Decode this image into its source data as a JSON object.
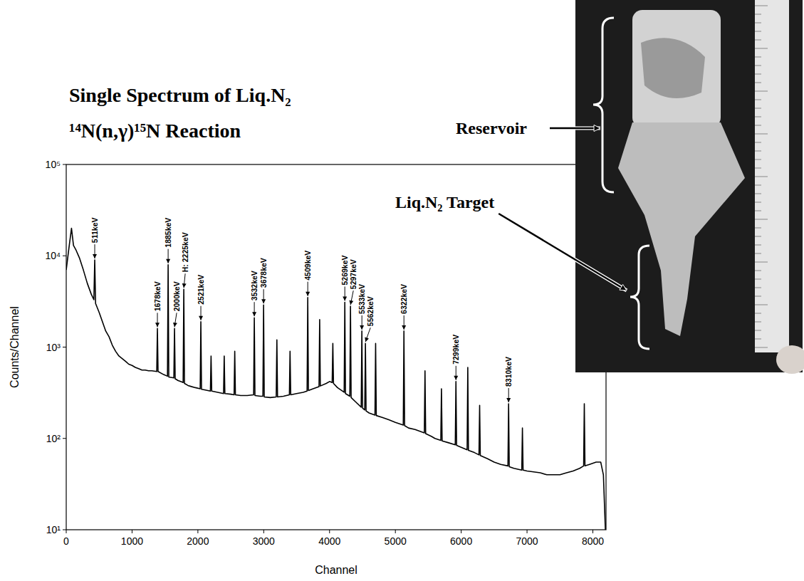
{
  "chart_data": {
    "type": "line",
    "title": "Single Spectrum of Liq.N₂",
    "subtitle": "¹⁴N(n,γ)¹⁵N Reaction",
    "x_label": "Channel",
    "y_label": "Counts/Channel",
    "color": "#000000",
    "log": "y",
    "grid": false,
    "xlim": [
      0,
      8200
    ],
    "ylim": [
      10,
      100000
    ],
    "xticks": [
      0,
      1000,
      2000,
      3000,
      4000,
      5000,
      6000,
      7000,
      8000
    ],
    "yticks": [
      {
        "value": 10,
        "label": "10¹"
      },
      {
        "value": 100,
        "label": "10²"
      },
      {
        "value": 1000,
        "label": "10³"
      },
      {
        "value": 10000,
        "label": "10⁴"
      },
      {
        "value": 100000,
        "label": "10⁵"
      }
    ],
    "x": [
      0,
      40,
      80,
      110,
      150,
      200,
      260,
      320,
      380,
      420,
      433,
      446,
      500,
      600,
      650,
      700,
      750,
      800,
      850,
      900,
      950,
      1000,
      1050,
      1100,
      1150,
      1200,
      1250,
      1300,
      1375,
      1385,
      1395,
      1480,
      1538,
      1548,
      1558,
      1635,
      1645,
      1655,
      1700,
      1776,
      1786,
      1796,
      1850,
      1900,
      1960,
      2035,
      2045,
      2055,
      2100,
      2190,
      2200,
      2210,
      2390,
      2400,
      2410,
      2500,
      2550,
      2560,
      2570,
      2650,
      2750,
      2847,
      2857,
      2867,
      2950,
      2988,
      2998,
      3008,
      3100,
      3190,
      3200,
      3210,
      3300,
      3390,
      3400,
      3410,
      3500,
      3600,
      3659,
      3669,
      3679,
      3750,
      3840,
      3850,
      3860,
      3950,
      4000,
      4040,
      4050,
      4060,
      4120,
      4222,
      4232,
      4242,
      4308,
      4318,
      4328,
      4400,
      4481,
      4491,
      4501,
      4535,
      4545,
      4555,
      4600,
      4690,
      4700,
      4710,
      4800,
      4900,
      5000,
      5120,
      5130,
      5140,
      5200,
      5300,
      5440,
      5450,
      5460,
      5550,
      5600,
      5690,
      5700,
      5710,
      5800,
      5910,
      5920,
      5930,
      6000,
      6090,
      6100,
      6110,
      6200,
      6270,
      6280,
      6290,
      6400,
      6500,
      6600,
      6710,
      6720,
      6730,
      6800,
      6920,
      6930,
      6940,
      7000,
      7100,
      7200,
      7300,
      7400,
      7500,
      7600,
      7700,
      7800,
      7860,
      7870,
      7880,
      7950,
      8050,
      8120,
      8160,
      8190
    ],
    "values": [
      7000,
      12000,
      20000,
      13000,
      11500,
      9500,
      7000,
      5000,
      3800,
      3300,
      9000,
      3000,
      2400,
      1500,
      1300,
      1050,
      900,
      800,
      750,
      700,
      650,
      630,
      600,
      580,
      560,
      560,
      550,
      550,
      540,
      1600,
      540,
      500,
      480,
      8000,
      470,
      460,
      1600,
      450,
      430,
      410,
      4300,
      400,
      380,
      370,
      360,
      350,
      1900,
      345,
      340,
      330,
      800,
      330,
      310,
      800,
      310,
      305,
      300,
      900,
      300,
      295,
      295,
      300,
      2100,
      295,
      290,
      290,
      2900,
      285,
      280,
      285,
      1200,
      285,
      290,
      300,
      900,
      300,
      310,
      320,
      330,
      3500,
      335,
      350,
      370,
      2000,
      375,
      400,
      420,
      410,
      1100,
      400,
      360,
      320,
      3100,
      310,
      290,
      2800,
      280,
      250,
      220,
      1500,
      215,
      205,
      1100,
      200,
      190,
      180,
      1100,
      178,
      170,
      160,
      150,
      140,
      1500,
      138,
      130,
      125,
      115,
      550,
      113,
      105,
      100,
      95,
      350,
      94,
      90,
      85,
      420,
      84,
      80,
      75,
      600,
      74,
      70,
      66,
      230,
      65,
      60,
      55,
      52,
      50,
      240,
      49,
      47,
      45,
      130,
      45,
      44,
      43,
      42,
      40,
      40,
      40,
      42,
      44,
      47,
      50,
      240,
      50,
      52,
      55,
      55,
      40,
      10
    ],
    "annotations": [
      {
        "text": "511keV",
        "x": 433,
        "y": 9000
      },
      {
        "text": "1678keV",
        "x": 1385,
        "y": 1600
      },
      {
        "text": "1885keV",
        "x": 1548,
        "y": 8000
      },
      {
        "text": "2000keV",
        "x": 1645,
        "y": 1600
      },
      {
        "text": "H: 2225keV",
        "x": 1786,
        "y": 4300
      },
      {
        "text": "2521keV",
        "x": 2045,
        "y": 1900
      },
      {
        "text": "3532keV",
        "x": 2857,
        "y": 2100
      },
      {
        "text": "3678keV",
        "x": 2998,
        "y": 2900
      },
      {
        "text": "4509keV",
        "x": 3669,
        "y": 3500
      },
      {
        "text": "5269keV",
        "x": 4232,
        "y": 3100
      },
      {
        "text": "5297keV",
        "x": 4318,
        "y": 2800
      },
      {
        "text": "5533keV",
        "x": 4491,
        "y": 1500
      },
      {
        "text": "5562keV",
        "x": 4545,
        "y": 1100
      },
      {
        "text": "6322keV",
        "x": 5130,
        "y": 1500
      },
      {
        "text": "7299keV",
        "x": 5920,
        "y": 420
      },
      {
        "text": "8310keV",
        "x": 6720,
        "y": 240
      }
    ]
  },
  "photo": {
    "labels": [
      "Reservoir",
      "Liq.N₂ Target"
    ]
  }
}
